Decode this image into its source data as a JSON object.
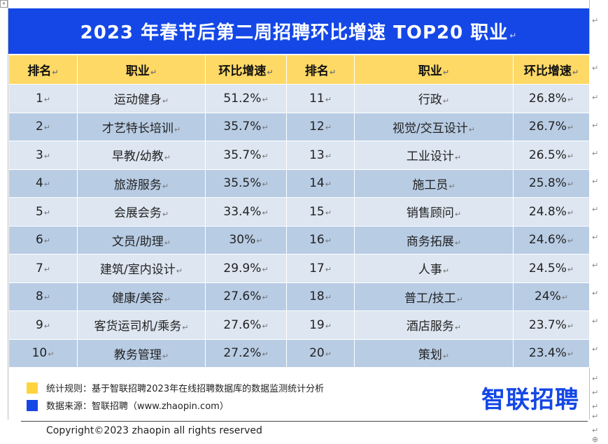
{
  "title": "2023 年春节后第二周招聘环比增速 TOP20 职业",
  "headers": [
    "排名",
    "职业",
    "环比增速",
    "排名",
    "职业",
    "环比增速"
  ],
  "left_rows": [
    {
      "rank": "1",
      "job": "运动健身",
      "growth": "51.2%"
    },
    {
      "rank": "2",
      "job": "才艺特长培训",
      "growth": "35.7%"
    },
    {
      "rank": "3",
      "job": "早教/幼教",
      "growth": "35.7%"
    },
    {
      "rank": "4",
      "job": "旅游服务",
      "growth": "35.5%"
    },
    {
      "rank": "5",
      "job": "会展会务",
      "growth": "33.4%"
    },
    {
      "rank": "6",
      "job": "文员/助理",
      "growth": "30%"
    },
    {
      "rank": "7",
      "job": "建筑/室内设计",
      "growth": "29.9%"
    },
    {
      "rank": "8",
      "job": "健康/美容",
      "growth": "27.6%"
    },
    {
      "rank": "9",
      "job": "客货运司机/乘务",
      "growth": "27.6%"
    },
    {
      "rank": "10",
      "job": "教务管理",
      "growth": "27.2%"
    }
  ],
  "right_rows": [
    {
      "rank": "11",
      "job": "行政",
      "growth": "26.8%"
    },
    {
      "rank": "12",
      "job": "视觉/交互设计",
      "growth": "26.7%"
    },
    {
      "rank": "13",
      "job": "工业设计",
      "growth": "26.5%"
    },
    {
      "rank": "14",
      "job": "施工员",
      "growth": "25.8%"
    },
    {
      "rank": "15",
      "job": "销售顾问",
      "growth": "24.8%"
    },
    {
      "rank": "16",
      "job": "商务拓展",
      "growth": "24.6%"
    },
    {
      "rank": "17",
      "job": "人事",
      "growth": "24.5%"
    },
    {
      "rank": "18",
      "job": "普工/技工",
      "growth": "24%"
    },
    {
      "rank": "19",
      "job": "酒店服务",
      "growth": "23.7%"
    },
    {
      "rank": "20",
      "job": "策划",
      "growth": "23.4%"
    }
  ],
  "legend": {
    "rule": "统计规则：基于智联招聘2023年在线招聘数据库的数据监测统计分析",
    "source": "数据来源：智联招聘（www.zhaopin.com）"
  },
  "brand": "智联招聘",
  "copyright": "Copyright©2023 zhaopin all rights reserved",
  "colors": {
    "title_bg": "#1447E6",
    "header_bg": "#FFD966",
    "row_light": "#DDE6F1",
    "row_dark": "#B8CCE4",
    "legend_yellow": "#FFD43B",
    "legend_blue": "#1447E6"
  },
  "marks": {
    "para": "↵",
    "anchor": "⊕"
  }
}
